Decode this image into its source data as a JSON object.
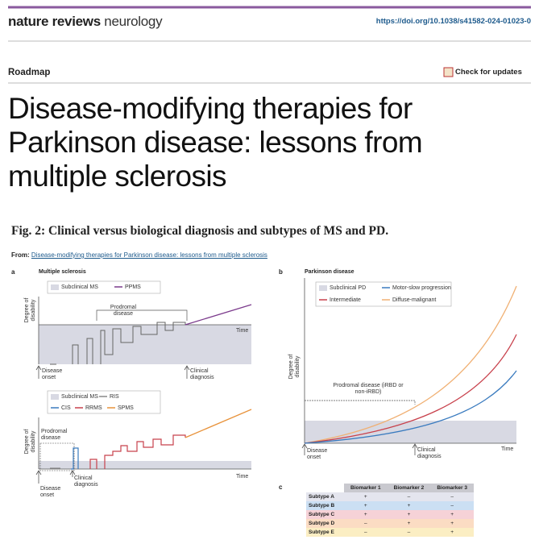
{
  "header": {
    "journal_brand": "nature reviews",
    "journal_subject": "neurology",
    "doi": "https://doi.org/10.1038/s41582-024-01023-0"
  },
  "article": {
    "type": "Roadmap",
    "check_updates": "Check for updates",
    "title": "Disease-modifying therapies for Parkinson disease: lessons from multiple sclerosis"
  },
  "figure": {
    "title": "Fig. 2: Clinical versus biological diagnosis and subtypes of MS and PD.",
    "from_label": "From:",
    "from_link": "Disease-modifying therapies for Parkinson disease: lessons from multiple sclerosis",
    "panel_a": {
      "label": "a",
      "title": "Multiple sclerosis",
      "top": {
        "legend": [
          "Subclinical MS",
          "PPMS"
        ],
        "y_label": "Degree of disability",
        "prodromal": "Prodromal disease",
        "time": "Time",
        "onset": "Disease onset",
        "diagnosis": "Clinical diagnosis"
      },
      "bottom": {
        "legend": [
          "Subclinical MS",
          "RIS",
          "CIS",
          "RRMS",
          "SPMS"
        ],
        "y_label": "Degree of disability",
        "prodromal": "Prodromal disease",
        "time": "Time",
        "onset": "Disease onset",
        "diagnosis": "Clinical diagnosis"
      }
    },
    "panel_b": {
      "label": "b",
      "title": "Parkinson disease",
      "legend": [
        "Subclinical PD",
        "Motor-slow progression",
        "Intermediate",
        "Diffuse-malignant"
      ],
      "y_label": "Degree of disability",
      "prodromal": "Prodromal disease (iRBD or non-iRBD)",
      "time": "Time",
      "onset": "Disease onset",
      "diagnosis": "Clinical diagnosis"
    },
    "panel_c": {
      "label": "c",
      "columns": [
        "Biomarker 1",
        "Biomarker 2",
        "Biomarker 3"
      ],
      "rows": [
        {
          "name": "Subtype A",
          "cells": [
            "+",
            "–",
            "–"
          ]
        },
        {
          "name": "Subtype B",
          "cells": [
            "+",
            "+",
            "–"
          ]
        },
        {
          "name": "Subtype C",
          "cells": [
            "+",
            "+",
            "+"
          ]
        },
        {
          "name": "Subtype D",
          "cells": [
            "–",
            "+",
            "+"
          ]
        },
        {
          "name": "Subtype E",
          "cells": [
            "–",
            "–",
            "+"
          ]
        }
      ]
    }
  }
}
